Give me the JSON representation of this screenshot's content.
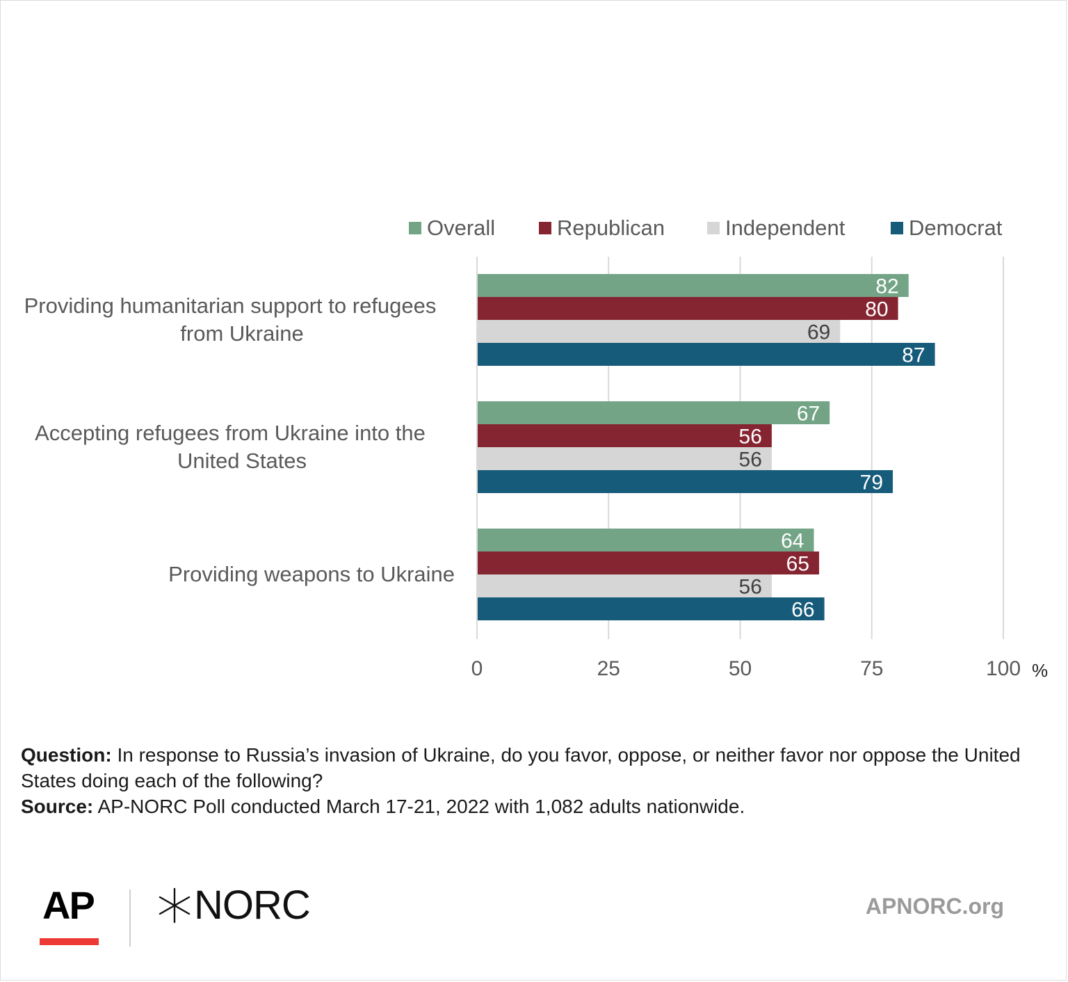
{
  "chart_data": {
    "type": "bar",
    "orientation": "horizontal",
    "categories": [
      "Providing humanitarian support to refugees from Ukraine",
      "Accepting refugees from Ukraine into the United States",
      "Providing weapons to Ukraine"
    ],
    "category_lines": [
      [
        "Providing humanitarian support to refugees",
        "from Ukraine"
      ],
      [
        "Accepting refugees from Ukraine into the",
        "United States"
      ],
      [
        "Providing weapons to Ukraine"
      ]
    ],
    "series": [
      {
        "name": "Overall",
        "color": "#73a486",
        "label_color": "#ffffff",
        "values": [
          82,
          67,
          64
        ]
      },
      {
        "name": "Republican",
        "color": "#862532",
        "label_color": "#ffffff",
        "values": [
          80,
          56,
          65
        ]
      },
      {
        "name": "Independent",
        "color": "#d6d6d6",
        "label_color": "#404040",
        "values": [
          69,
          56,
          56
        ]
      },
      {
        "name": "Democrat",
        "color": "#175b7a",
        "label_color": "#ffffff",
        "values": [
          87,
          79,
          66
        ]
      }
    ],
    "xlim": [
      0,
      100
    ],
    "xticks": [
      0,
      25,
      50,
      75,
      100
    ],
    "xtick_labels": [
      "0",
      "25",
      "50",
      "75",
      "100"
    ],
    "x_unit": "%",
    "grid": true,
    "legend_position": "top-right"
  },
  "footnote": {
    "question_label": "Question:",
    "question_text": " In response to Russia’s invasion of Ukraine, do you favor, oppose, or neither favor nor oppose the United States doing each of the following?",
    "source_label": "Source:",
    "source_text": " AP-NORC Poll conducted March 17-21, 2022 with 1,082 adults nationwide."
  },
  "logos": {
    "ap": "AP",
    "norc": "NORC",
    "website": "APNORC.org"
  },
  "colors": {
    "ap_red": "#ee3a35",
    "axis_text": "#595959",
    "grid": "#d9d9d9"
  }
}
